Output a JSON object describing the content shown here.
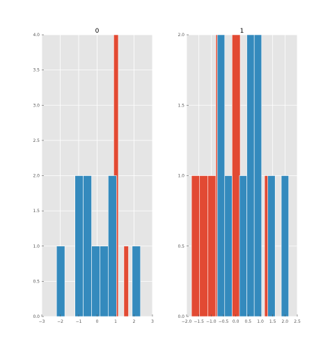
{
  "colors": {
    "background": "#e5e5e5",
    "grid": "#ffffff",
    "series_red": "#e24a33",
    "series_blue": "#348abd",
    "tick_text": "#555555"
  },
  "chart_data": [
    {
      "type": "bar",
      "title": "0",
      "grid": true,
      "xlim": [
        -3,
        3
      ],
      "ylim": [
        0,
        4.0
      ],
      "xticks": [
        "−3",
        "−2",
        "−1",
        "0",
        "1",
        "2",
        "3"
      ],
      "xtick_values": [
        -3,
        -2,
        -1,
        0,
        1,
        2,
        3
      ],
      "yticks": [
        "0.0",
        "0.5",
        "1.0",
        "1.5",
        "2.0",
        "2.5",
        "3.0",
        "3.5",
        "4.0"
      ],
      "ytick_values": [
        0,
        0.5,
        1.0,
        1.5,
        2.0,
        2.5,
        3.0,
        3.5,
        4.0
      ],
      "series": [
        {
          "color": "series_red",
          "bars": [
            {
              "x0": 0.9,
              "x1": 1.15,
              "value": 4
            },
            {
              "x0": 1.45,
              "x1": 1.7,
              "value": 1
            }
          ]
        },
        {
          "color": "series_blue",
          "bars": [
            {
              "x0": -2.2,
              "x1": -1.75,
              "value": 1
            },
            {
              "x0": -1.2,
              "x1": -0.75,
              "value": 2
            },
            {
              "x0": -0.75,
              "x1": -0.3,
              "value": 2
            },
            {
              "x0": -0.3,
              "x1": 0.15,
              "value": 1
            },
            {
              "x0": 0.15,
              "x1": 0.6,
              "value": 1
            },
            {
              "x0": 0.6,
              "x1": 1.05,
              "value": 2
            },
            {
              "x0": 1.9,
              "x1": 2.35,
              "value": 1
            }
          ]
        }
      ]
    },
    {
      "type": "bar",
      "title": "1",
      "grid": true,
      "xlim": [
        -2.0,
        2.5
      ],
      "ylim": [
        0,
        2.0
      ],
      "xticks": [
        "−2.0",
        "−1.5",
        "−1.0",
        "−0.5",
        "0.0",
        "0.5",
        "1.0",
        "1.5",
        "2.0",
        "2.5"
      ],
      "xtick_values": [
        -2.0,
        -1.5,
        -1.0,
        -0.5,
        0.0,
        0.5,
        1.0,
        1.5,
        2.0,
        2.5
      ],
      "yticks": [
        "0.0",
        "0.5",
        "1.0",
        "1.5",
        "2.0"
      ],
      "ytick_values": [
        0,
        0.5,
        1.0,
        1.5,
        2.0
      ],
      "series": [
        {
          "color": "series_red",
          "bars": [
            {
              "x0": -1.8,
              "x1": -1.47,
              "value": 1
            },
            {
              "x0": -1.47,
              "x1": -1.14,
              "value": 1
            },
            {
              "x0": -1.14,
              "x1": -0.81,
              "value": 1
            },
            {
              "x0": -0.81,
              "x1": -0.48,
              "value": 2
            },
            {
              "x0": -0.15,
              "x1": 0.18,
              "value": 2
            },
            {
              "x0": 1.17,
              "x1": 1.5,
              "value": 1
            }
          ]
        },
        {
          "color": "series_blue",
          "bars": [
            {
              "x0": -0.75,
              "x1": -0.45,
              "value": 2
            },
            {
              "x0": -0.45,
              "x1": -0.15,
              "value": 1
            },
            {
              "x0": 0.15,
              "x1": 0.45,
              "value": 1
            },
            {
              "x0": 0.45,
              "x1": 0.75,
              "value": 2
            },
            {
              "x0": 0.75,
              "x1": 1.05,
              "value": 2
            },
            {
              "x0": 1.3,
              "x1": 1.6,
              "value": 1
            },
            {
              "x0": 1.85,
              "x1": 2.15,
              "value": 1
            }
          ]
        }
      ]
    }
  ]
}
